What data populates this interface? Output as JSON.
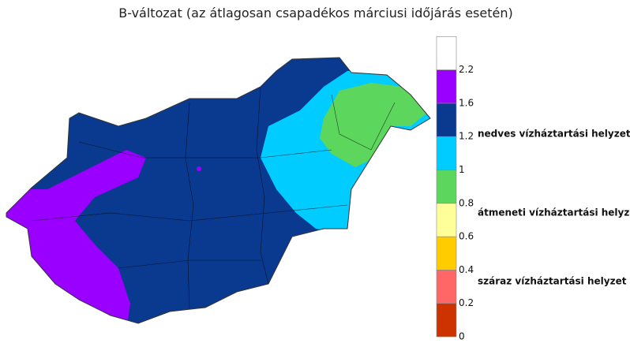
{
  "title": "B-változat (az átlagosan csapadékos márciusi időjárás esetén)",
  "legend": {
    "colors": [
      "#cc3300",
      "#ff6666",
      "#ffcc00",
      "#ffff99",
      "#5cd65c",
      "#00ccff",
      "#0a3a8f",
      "#9900ff",
      "#ffffff"
    ],
    "ticks": [
      0,
      0.2,
      0.4,
      0.6,
      0.8,
      1,
      1.2,
      1.6,
      2.2
    ],
    "labels": [
      "nedves vízháztartási helyzet",
      "átmeneti vízháztartási helyzet",
      "száraz vízháztartási helyzet"
    ]
  }
}
